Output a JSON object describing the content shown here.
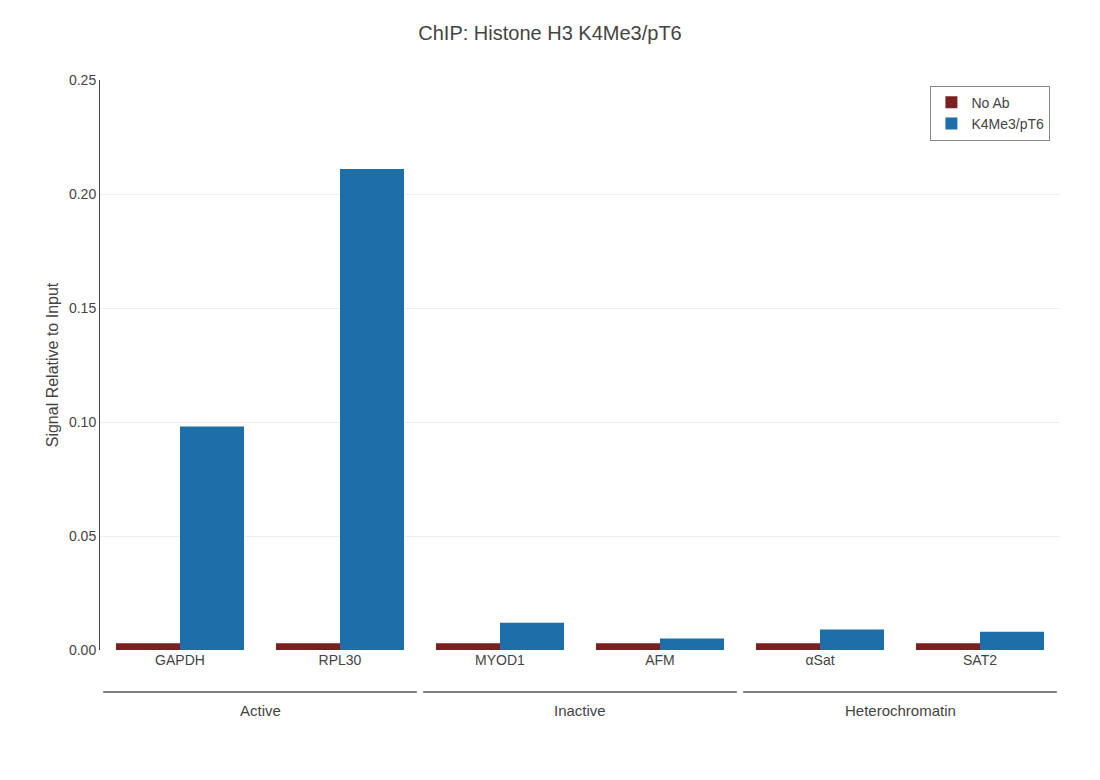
{
  "chart_data": {
    "type": "bar",
    "title": "ChIP: Histone H3 K4Me3/pT6",
    "ylabel": "Signal Relative to Input",
    "categories": [
      "GAPDH",
      "RPL30",
      "MYOD1",
      "AFM",
      "αSat",
      "SAT2"
    ],
    "series": [
      {
        "name": "No Ab",
        "color": "#7b2020",
        "values": [
          0.003,
          0.003,
          0.003,
          0.003,
          0.003,
          0.003
        ]
      },
      {
        "name": "K4Me3/pT6",
        "color": "#1e6fa8",
        "values": [
          0.098,
          0.211,
          0.012,
          0.005,
          0.009,
          0.008
        ]
      }
    ],
    "annotations": [
      {
        "text": "Active",
        "categories": [
          "GAPDH",
          "RPL30"
        ]
      },
      {
        "text": "Inactive",
        "categories": [
          "MYOD1",
          "AFM"
        ]
      },
      {
        "text": "Heterochromatin",
        "categories": [
          "αSat",
          "SAT2"
        ]
      }
    ],
    "ylim": [
      0,
      0.25
    ],
    "yticks": [
      {
        "value": 0,
        "label": "0.00"
      },
      0.05,
      {
        "value": 0.1,
        "label": "0.10"
      },
      0.15,
      {
        "value": 0.2,
        "label": "0.20"
      },
      0.25
    ],
    "grid": true,
    "legend": "upper right"
  }
}
